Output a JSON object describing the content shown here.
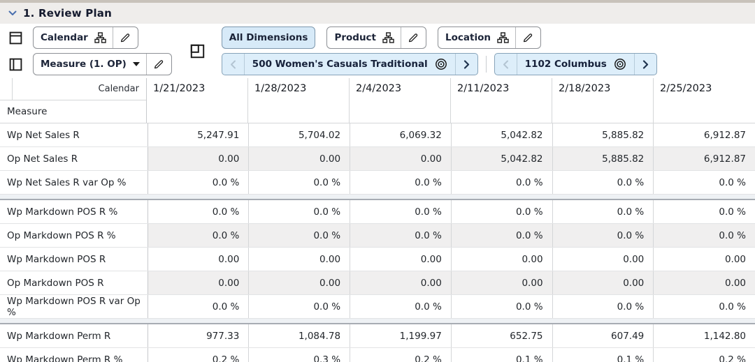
{
  "title": {
    "label": "1. Review Plan"
  },
  "toolbar": {
    "calendar_label": "Calendar",
    "measure_label": "Measure (1. OP)",
    "all_dimensions_label": "All Dimensions",
    "product_label": "Product",
    "location_label": "Location",
    "product_chip_label": "500 Women's Casuals Traditional",
    "location_chip_label": "1102 Columbus"
  },
  "grid": {
    "col_dim": "Calendar",
    "row_dim": "Measure",
    "columns": [
      "1/21/2023",
      "1/28/2023",
      "2/4/2023",
      "2/11/2023",
      "2/18/2023",
      "2/25/2023"
    ],
    "groups": [
      {
        "rows": [
          {
            "label": "Wp Net Sales R",
            "readonly": false,
            "values": [
              "5,247.91",
              "5,704.02",
              "6,069.32",
              "5,042.82",
              "5,885.82",
              "6,912.87"
            ]
          },
          {
            "label": "Op Net Sales R",
            "readonly": true,
            "values": [
              "0.00",
              "0.00",
              "0.00",
              "5,042.82",
              "5,885.82",
              "6,912.87"
            ]
          },
          {
            "label": "Wp Net Sales R var Op %",
            "readonly": false,
            "values": [
              "0.0 %",
              "0.0 %",
              "0.0 %",
              "0.0 %",
              "0.0 %",
              "0.0 %"
            ]
          }
        ]
      },
      {
        "rows": [
          {
            "label": "Wp Markdown POS R %",
            "readonly": false,
            "values": [
              "0.0 %",
              "0.0 %",
              "0.0 %",
              "0.0 %",
              "0.0 %",
              "0.0 %"
            ]
          },
          {
            "label": "Op Markdown POS R %",
            "readonly": true,
            "values": [
              "0.0 %",
              "0.0 %",
              "0.0 %",
              "0.0 %",
              "0.0 %",
              "0.0 %"
            ]
          },
          {
            "label": "Wp Markdown POS R",
            "readonly": false,
            "values": [
              "0.00",
              "0.00",
              "0.00",
              "0.00",
              "0.00",
              "0.00"
            ]
          },
          {
            "label": "Op Markdown POS R",
            "readonly": true,
            "values": [
              "0.00",
              "0.00",
              "0.00",
              "0.00",
              "0.00",
              "0.00"
            ]
          },
          {
            "label": "Wp Markdown POS R var Op %",
            "readonly": false,
            "values": [
              "0.0 %",
              "0.0 %",
              "0.0 %",
              "0.0 %",
              "0.0 %",
              "0.0 %"
            ]
          }
        ]
      },
      {
        "rows": [
          {
            "label": "Wp Markdown Perm R",
            "readonly": false,
            "values": [
              "977.33",
              "1,084.78",
              "1,199.97",
              "652.75",
              "607.49",
              "1,142.80"
            ]
          },
          {
            "label": "Wp Markdown Perm R %",
            "readonly": false,
            "values": [
              "0.2 %",
              "0.3 %",
              "0.2 %",
              "0.1 %",
              "0.1 %",
              "0.2 %"
            ]
          }
        ]
      }
    ]
  },
  "icons": {
    "collapse": "chevron-down",
    "column_axis": "table-header-row",
    "row_axis": "table-header-column",
    "page_axis": "nested-square",
    "hierarchy": "org-chart",
    "edit": "pencil",
    "target": "bullseye",
    "prev": "chevron-left",
    "next": "chevron-right"
  },
  "colors": {
    "accent_blue": "#3f67a8",
    "chip_bg": "#ddeefa",
    "chip_border": "#87a3b9",
    "active_button_bg": "#d7eaf8",
    "title_bar_bg": "#efedeb",
    "readonly_cell_bg": "#f0efef"
  }
}
